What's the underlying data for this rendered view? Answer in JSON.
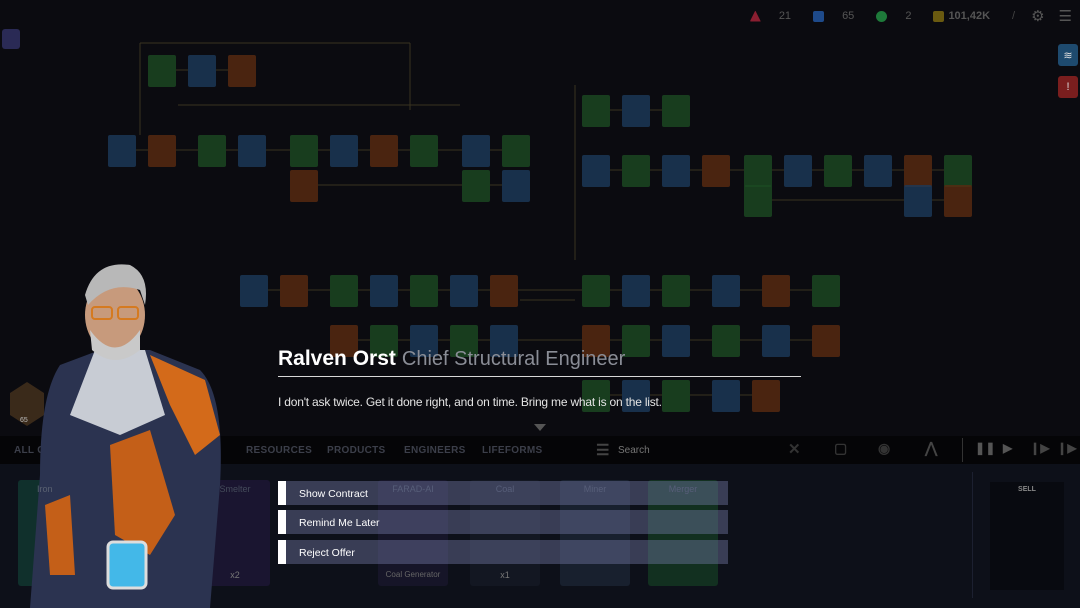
{
  "hud": {
    "resources": [
      {
        "icon": "network-icon",
        "value": "21",
        "color": "#8a1e30"
      },
      {
        "icon": "cards-icon",
        "value": "65",
        "color": "#1e4a8a"
      },
      {
        "icon": "engineer-icon",
        "value": "2",
        "color": "#1e7a3a"
      },
      {
        "icon": "money-icon",
        "value": "101,42K",
        "color": "#8a7a1e"
      }
    ],
    "settings_icon": "gear-icon",
    "menu_icon": "hamburger-icon"
  },
  "side_buttons": [
    {
      "icon": "layers-icon",
      "color": "#1e4a6e"
    },
    {
      "icon": "alert-icon",
      "color": "#7a1e1e"
    }
  ],
  "top_left_icon": "clipboard-icon",
  "dialog": {
    "name": "Ralven Orst",
    "role": "Chief Structural Engineer",
    "quote": "I don't ask twice. Get it done right, and on time. Bring me what is on the list.",
    "options": [
      "Show Contract",
      "Remind Me Later",
      "Reject Offer"
    ]
  },
  "player": {
    "level": "65"
  },
  "tabs": [
    "ALL CARDS",
    "RESOURCES",
    "PRODUCTS",
    "ENGINEERS",
    "LIFEFORMS"
  ],
  "search": {
    "placeholder": "Search"
  },
  "toolbar_icons": [
    "tools-icon",
    "frame-icon",
    "cloud-icon",
    "network-icon"
  ],
  "playback_icons": [
    "pause-icon",
    "play-icon",
    "fast-forward-icon",
    "fastest-icon"
  ],
  "cards": [
    {
      "title": "Iron",
      "badge": ""
    },
    {
      "title": "Smelter",
      "badge": "x2"
    },
    {
      "title": "FARAD-AI",
      "badge": "Coal Generator"
    },
    {
      "title": "Coal",
      "badge": "x1"
    },
    {
      "title": "Miner",
      "badge": ""
    },
    {
      "title": "Merger",
      "badge": ""
    }
  ],
  "sell_label": "SELL"
}
